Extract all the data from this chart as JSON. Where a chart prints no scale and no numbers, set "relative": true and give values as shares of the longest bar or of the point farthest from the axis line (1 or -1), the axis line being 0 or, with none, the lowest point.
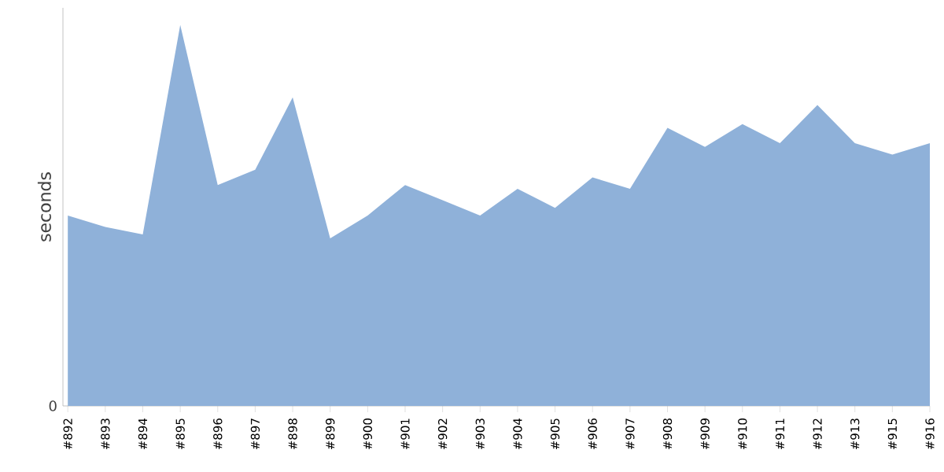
{
  "chart_data": {
    "type": "area",
    "ylabel": "seconds",
    "relative": true,
    "annotations": [
      "0"
    ],
    "categories": [
      "#892",
      "#893",
      "#894",
      "#895",
      "#896",
      "#897",
      "#898",
      "#899",
      "#900",
      "#901",
      "#902",
      "#903",
      "#904",
      "#905",
      "#906",
      "#907",
      "#908",
      "#909",
      "#910",
      "#911",
      "#912",
      "#913",
      "#915",
      "#916"
    ],
    "series": [
      {
        "color": "#8fb1d9",
        "values": [
          0.5,
          0.47,
          0.45,
          1,
          0.58,
          0.62,
          0.81,
          0.44,
          0.5,
          0.58,
          0.54,
          0.5,
          0.57,
          0.52,
          0.6,
          0.57,
          0.73,
          0.68,
          0.74,
          0.69,
          0.79,
          0.69,
          0.66,
          0.69
        ]
      }
    ]
  }
}
